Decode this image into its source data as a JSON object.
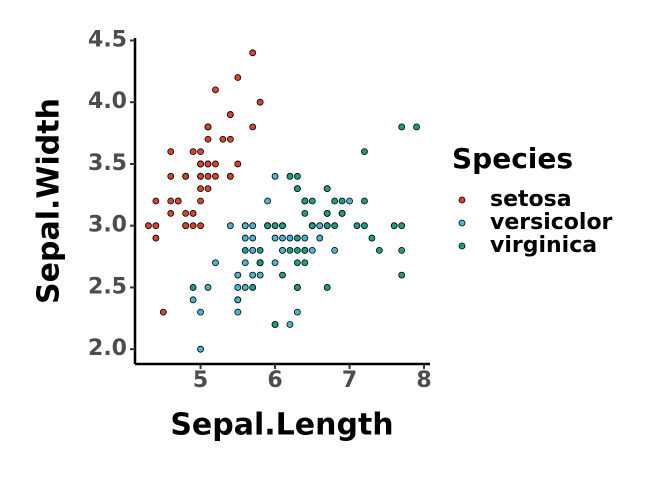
{
  "chart_data": {
    "type": "scatter",
    "x_label": "Sepal.Length",
    "y_label": "Sepal.Width",
    "legend_title": "Species",
    "xlim": [
      4.12,
      8.08
    ],
    "ylim": [
      1.88,
      4.52
    ],
    "xticks": [
      5,
      6,
      7,
      8
    ],
    "yticks": [
      {
        "value": 2.0,
        "label": "2.0"
      },
      {
        "value": 2.5,
        "label": "2.5"
      },
      {
        "value": 3.0,
        "label": "3.0"
      },
      {
        "value": 3.5,
        "label": "3.5"
      },
      {
        "value": 4.0,
        "label": "4.0"
      },
      {
        "value": 4.5,
        "label": "4.5"
      }
    ],
    "legend_position": "right",
    "series": [
      {
        "name": "setosa",
        "color": "#d5452b",
        "x": [
          5.1,
          4.9,
          4.7,
          4.6,
          5.0,
          5.4,
          4.6,
          5.0,
          4.4,
          4.9,
          5.4,
          4.8,
          4.8,
          4.3,
          5.8,
          5.7,
          5.4,
          5.1,
          5.7,
          5.1,
          5.4,
          5.1,
          4.6,
          5.1,
          4.8,
          5.0,
          5.0,
          5.2,
          5.2,
          4.7,
          4.8,
          5.4,
          5.2,
          5.5,
          4.9,
          5.0,
          5.5,
          4.9,
          4.4,
          5.1,
          5.0,
          4.5,
          4.4,
          5.0,
          5.1,
          4.8,
          5.1,
          4.6,
          5.3,
          5.0
        ],
        "y": [
          3.5,
          3.0,
          3.2,
          3.1,
          3.6,
          3.9,
          3.4,
          3.4,
          2.9,
          3.1,
          3.7,
          3.4,
          3.0,
          3.0,
          4.0,
          4.4,
          3.9,
          3.5,
          3.8,
          3.8,
          3.4,
          3.7,
          3.6,
          3.3,
          3.4,
          3.0,
          3.4,
          3.5,
          3.4,
          3.2,
          3.1,
          3.4,
          4.1,
          4.2,
          3.1,
          3.2,
          3.5,
          3.6,
          3.0,
          3.4,
          3.5,
          2.3,
          3.2,
          3.5,
          3.8,
          3.0,
          3.8,
          3.2,
          3.7,
          3.3
        ]
      },
      {
        "name": "versicolor",
        "color": "#4db3cf",
        "x": [
          7.0,
          6.4,
          6.9,
          5.5,
          6.5,
          5.7,
          6.3,
          4.9,
          6.6,
          5.2,
          5.0,
          5.9,
          6.0,
          6.1,
          5.6,
          6.7,
          5.6,
          5.8,
          6.2,
          5.6,
          5.9,
          6.1,
          6.3,
          6.1,
          6.4,
          6.6,
          6.8,
          6.7,
          6.0,
          5.7,
          5.5,
          5.5,
          5.8,
          6.0,
          5.4,
          6.0,
          6.7,
          6.3,
          5.6,
          5.5,
          5.5,
          6.1,
          5.8,
          5.0,
          5.6,
          5.7,
          5.7,
          6.2,
          5.1,
          5.7
        ],
        "y": [
          3.2,
          3.2,
          3.1,
          2.3,
          2.8,
          2.8,
          3.3,
          2.4,
          2.9,
          2.7,
          2.0,
          3.0,
          2.2,
          2.9,
          2.9,
          3.1,
          3.0,
          2.7,
          2.2,
          2.5,
          3.2,
          2.8,
          2.5,
          2.8,
          2.9,
          3.0,
          2.8,
          3.0,
          2.9,
          2.6,
          2.4,
          2.4,
          2.7,
          2.7,
          3.0,
          3.4,
          3.1,
          2.3,
          3.0,
          2.5,
          2.6,
          3.0,
          2.6,
          2.3,
          2.7,
          3.0,
          2.9,
          2.9,
          2.5,
          2.8
        ]
      },
      {
        "name": "virginica",
        "color": "#1c9e82",
        "x": [
          6.3,
          5.8,
          7.1,
          6.3,
          6.5,
          7.6,
          4.9,
          7.3,
          6.7,
          7.2,
          6.5,
          6.4,
          6.8,
          5.7,
          5.8,
          6.4,
          6.5,
          7.7,
          7.7,
          6.0,
          6.9,
          5.6,
          7.7,
          6.3,
          6.7,
          7.2,
          6.2,
          6.1,
          6.4,
          7.2,
          7.4,
          7.9,
          6.4,
          6.3,
          6.1,
          7.7,
          6.3,
          6.4,
          6.0,
          6.9,
          6.7,
          6.9,
          5.8,
          6.8,
          6.7,
          6.7,
          6.3,
          6.5,
          6.2,
          5.9
        ],
        "y": [
          3.3,
          2.7,
          3.0,
          2.9,
          3.0,
          3.0,
          2.5,
          2.9,
          2.5,
          3.6,
          3.2,
          2.7,
          3.0,
          2.5,
          2.8,
          3.2,
          3.0,
          3.8,
          2.6,
          2.2,
          3.2,
          2.8,
          2.8,
          2.7,
          3.3,
          3.2,
          2.8,
          3.0,
          2.8,
          3.0,
          2.8,
          3.8,
          2.8,
          2.8,
          2.6,
          3.0,
          3.4,
          3.1,
          3.0,
          3.1,
          3.1,
          3.1,
          2.7,
          3.2,
          3.3,
          3.0,
          2.5,
          3.0,
          3.4,
          3.0
        ]
      }
    ]
  }
}
